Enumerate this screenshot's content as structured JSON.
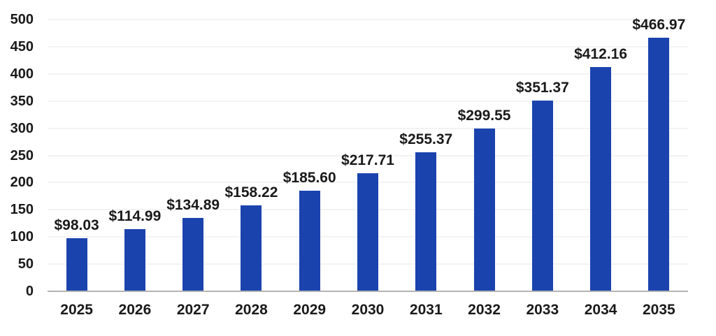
{
  "chart": {
    "bar_color": "#1b43ae",
    "text_color": "#1a1a1a",
    "axis_line_color": "#b3b3b3",
    "gridline_color": "#f3f3f3",
    "background_color": "#ffffff"
  },
  "chart_data": {
    "type": "bar",
    "title": "",
    "xlabel": "",
    "ylabel": "",
    "categories": [
      "2025",
      "2026",
      "2027",
      "2028",
      "2029",
      "2030",
      "2031",
      "2032",
      "2033",
      "2034",
      "2035"
    ],
    "values": [
      98.03,
      114.99,
      134.89,
      158.22,
      185.6,
      217.71,
      255.37,
      299.55,
      351.37,
      412.16,
      466.97
    ],
    "value_labels": [
      "$98.03",
      "$114.99",
      "$134.89",
      "$158.22",
      "$185.60",
      "$217.71",
      "$255.37",
      "$299.55",
      "$351.37",
      "$412.16",
      "$466.97"
    ],
    "ylim": [
      0,
      500
    ],
    "yticks": [
      0,
      50,
      100,
      150,
      200,
      250,
      300,
      350,
      400,
      450,
      500
    ],
    "grid": true,
    "legend_position": "none"
  }
}
